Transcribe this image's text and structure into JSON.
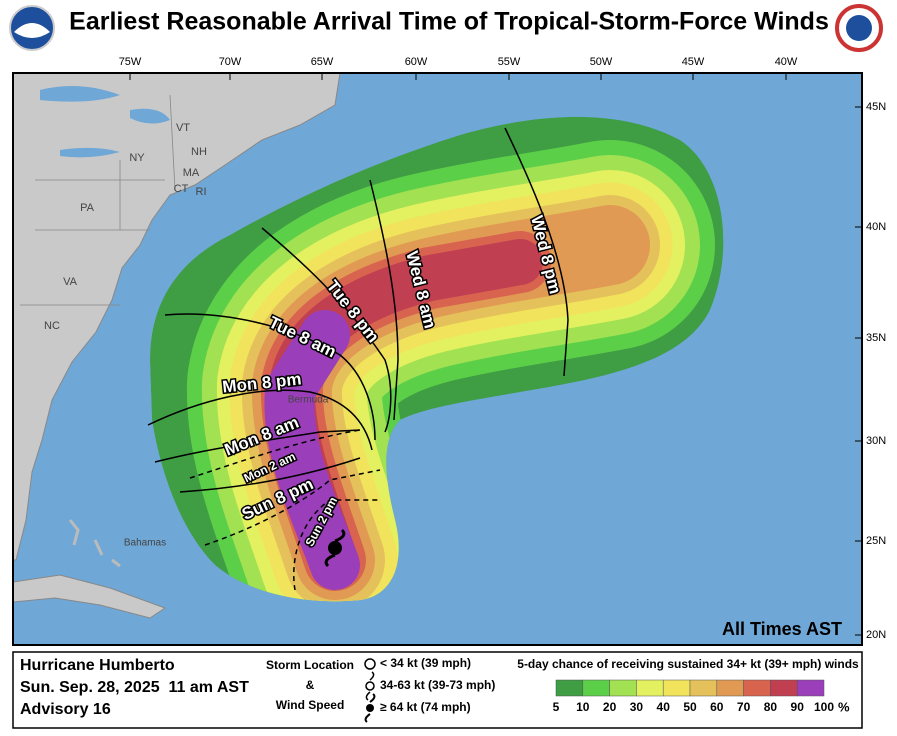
{
  "header": {
    "title": "Earliest Reasonable Arrival Time of Tropical-Storm-Force Winds"
  },
  "map": {
    "lon_labels": [
      "75W",
      "70W",
      "65W",
      "60W",
      "55W",
      "50W",
      "45W",
      "40W"
    ],
    "lat_labels": [
      "45N",
      "40N",
      "35N",
      "30N",
      "25N",
      "20N"
    ],
    "place_labels": [
      "VT",
      "NH",
      "NY",
      "MA",
      "CT",
      "RI",
      "PA",
      "VA",
      "NC",
      "Bermuda",
      "Bahamas"
    ],
    "time_labels": [
      "Tue 8 pm",
      "Tue 8 am",
      "Mon 8 pm",
      "Mon 8 am",
      "Mon 2 am",
      "Sun 8 pm",
      "Sun 2 pm",
      "Wed 8 am",
      "Wed 8 pm"
    ],
    "note": "All Times AST"
  },
  "legend": {
    "storm": {
      "name": "Hurricane Humberto",
      "date": "Sun. Sep. 28, 2025  11 am AST",
      "advisory": "Advisory 16"
    },
    "symbols": {
      "title_lines": [
        "Storm Location",
        "&",
        "Wind Speed"
      ],
      "items": [
        "< 34 kt (39 mph)",
        "34-63 kt (39-73 mph)",
        "≥ 64 kt (74 mph)"
      ]
    },
    "probability": {
      "title": "5-day chance of receiving sustained 34+ kt (39+ mph) winds",
      "levels": [
        5,
        10,
        20,
        30,
        40,
        50,
        60,
        70,
        80,
        90,
        100
      ],
      "unit": "%",
      "colors": [
        "#3f9d43",
        "#5ccf48",
        "#a2e152",
        "#e3f160",
        "#f1e35b",
        "#e5c15b",
        "#e09a53",
        "#d8644f",
        "#c03f50",
        "#9a3eb9"
      ]
    }
  }
}
